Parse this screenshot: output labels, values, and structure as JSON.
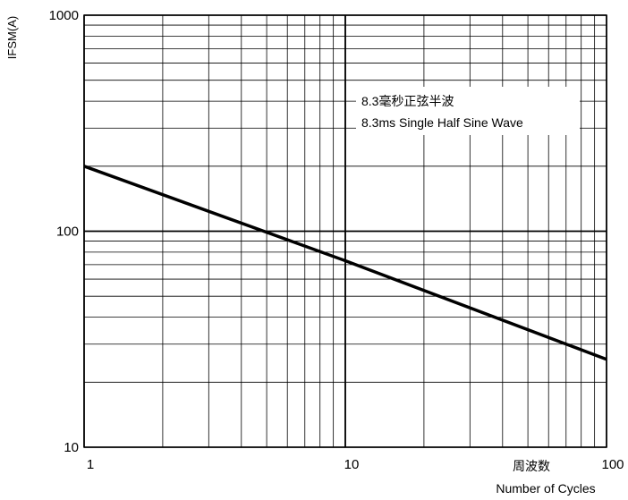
{
  "chart_data": {
    "type": "line",
    "xscale": "log",
    "yscale": "log",
    "xlim": [
      1,
      100
    ],
    "ylim": [
      10,
      1000
    ],
    "grid": true,
    "legend": "none",
    "ylabel": "IFSM(A)",
    "xlabel_cn": "周波数",
    "xlabel": "Number of Cycles",
    "annotation": {
      "line1": "8.3毫秒正弦半波",
      "line2": "8.3ms Single Half Sine Wave"
    },
    "xticks": [
      {
        "value": 1,
        "label": "1"
      },
      {
        "value": 10,
        "label": "10"
      },
      {
        "value": 100,
        "label": "100"
      }
    ],
    "yticks": [
      {
        "value": 10,
        "label": "10"
      },
      {
        "value": 100,
        "label": "100"
      },
      {
        "value": 1000,
        "label": "1000"
      }
    ],
    "series": [
      {
        "color": "#000000",
        "x": [
          1,
          10,
          100
        ],
        "y": [
          200,
          73,
          25.5
        ]
      }
    ]
  }
}
